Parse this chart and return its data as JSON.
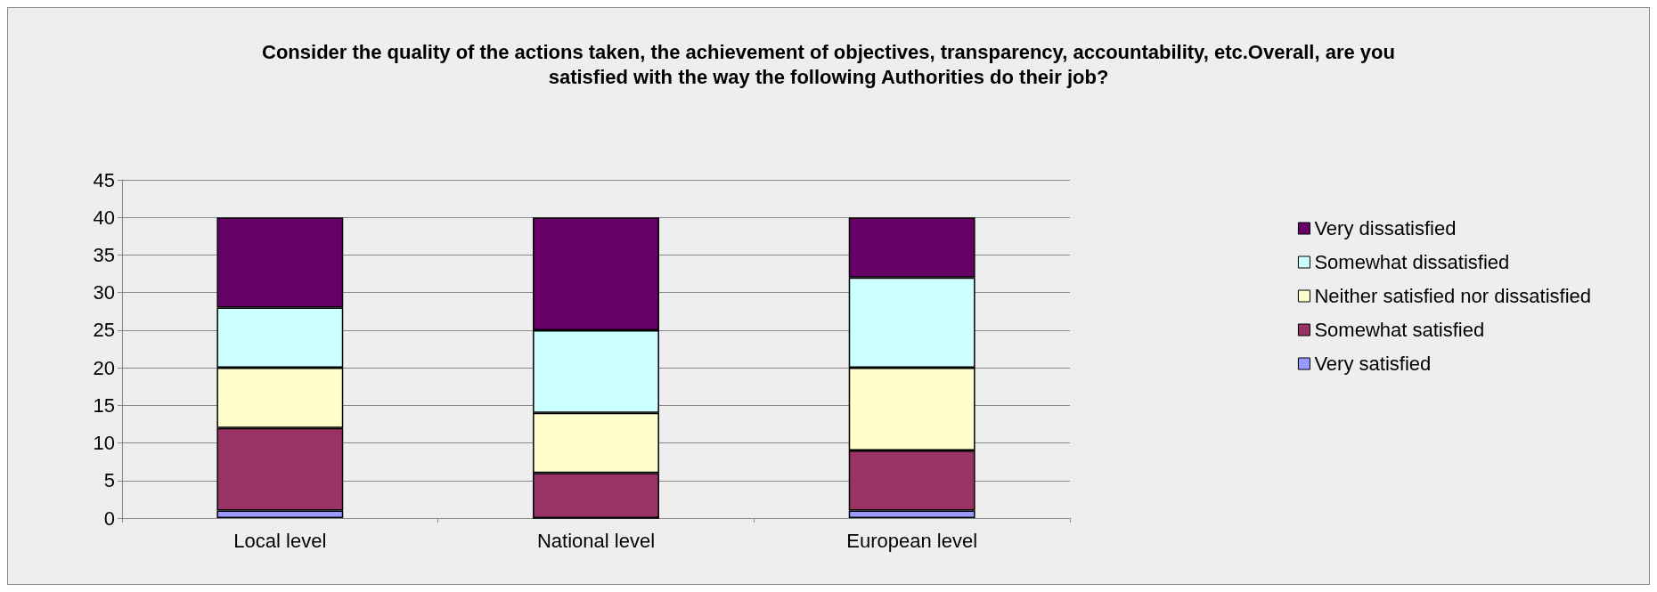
{
  "chart_data": {
    "type": "bar",
    "title": "Consider the quality of the actions taken, the achievement of objectives, transparency, accountability, etc.Overall, are you\nsatisfied with the way the following Authorities do their job?",
    "categories": [
      "Local level",
      "National level",
      "European level"
    ],
    "stacked": true,
    "series": [
      {
        "name": "Very satisfied",
        "color": "#9999ff",
        "values": [
          1,
          0,
          1
        ]
      },
      {
        "name": "Somewhat satisfied",
        "color": "#993366",
        "values": [
          11,
          6,
          8
        ]
      },
      {
        "name": "Neither satisfied nor dissatisfied",
        "color": "#ffffcc",
        "values": [
          8,
          8,
          11
        ]
      },
      {
        "name": "Somewhat dissatisfied",
        "color": "#ccffff",
        "values": [
          8,
          11,
          12
        ]
      },
      {
        "name": "Very dissatisfied",
        "color": "#660066",
        "values": [
          12,
          15,
          8
        ]
      }
    ],
    "ylim": [
      0,
      45
    ],
    "yticks": [
      0,
      5,
      10,
      15,
      20,
      25,
      30,
      35,
      40,
      45
    ],
    "grid": "y",
    "legend": "right"
  }
}
